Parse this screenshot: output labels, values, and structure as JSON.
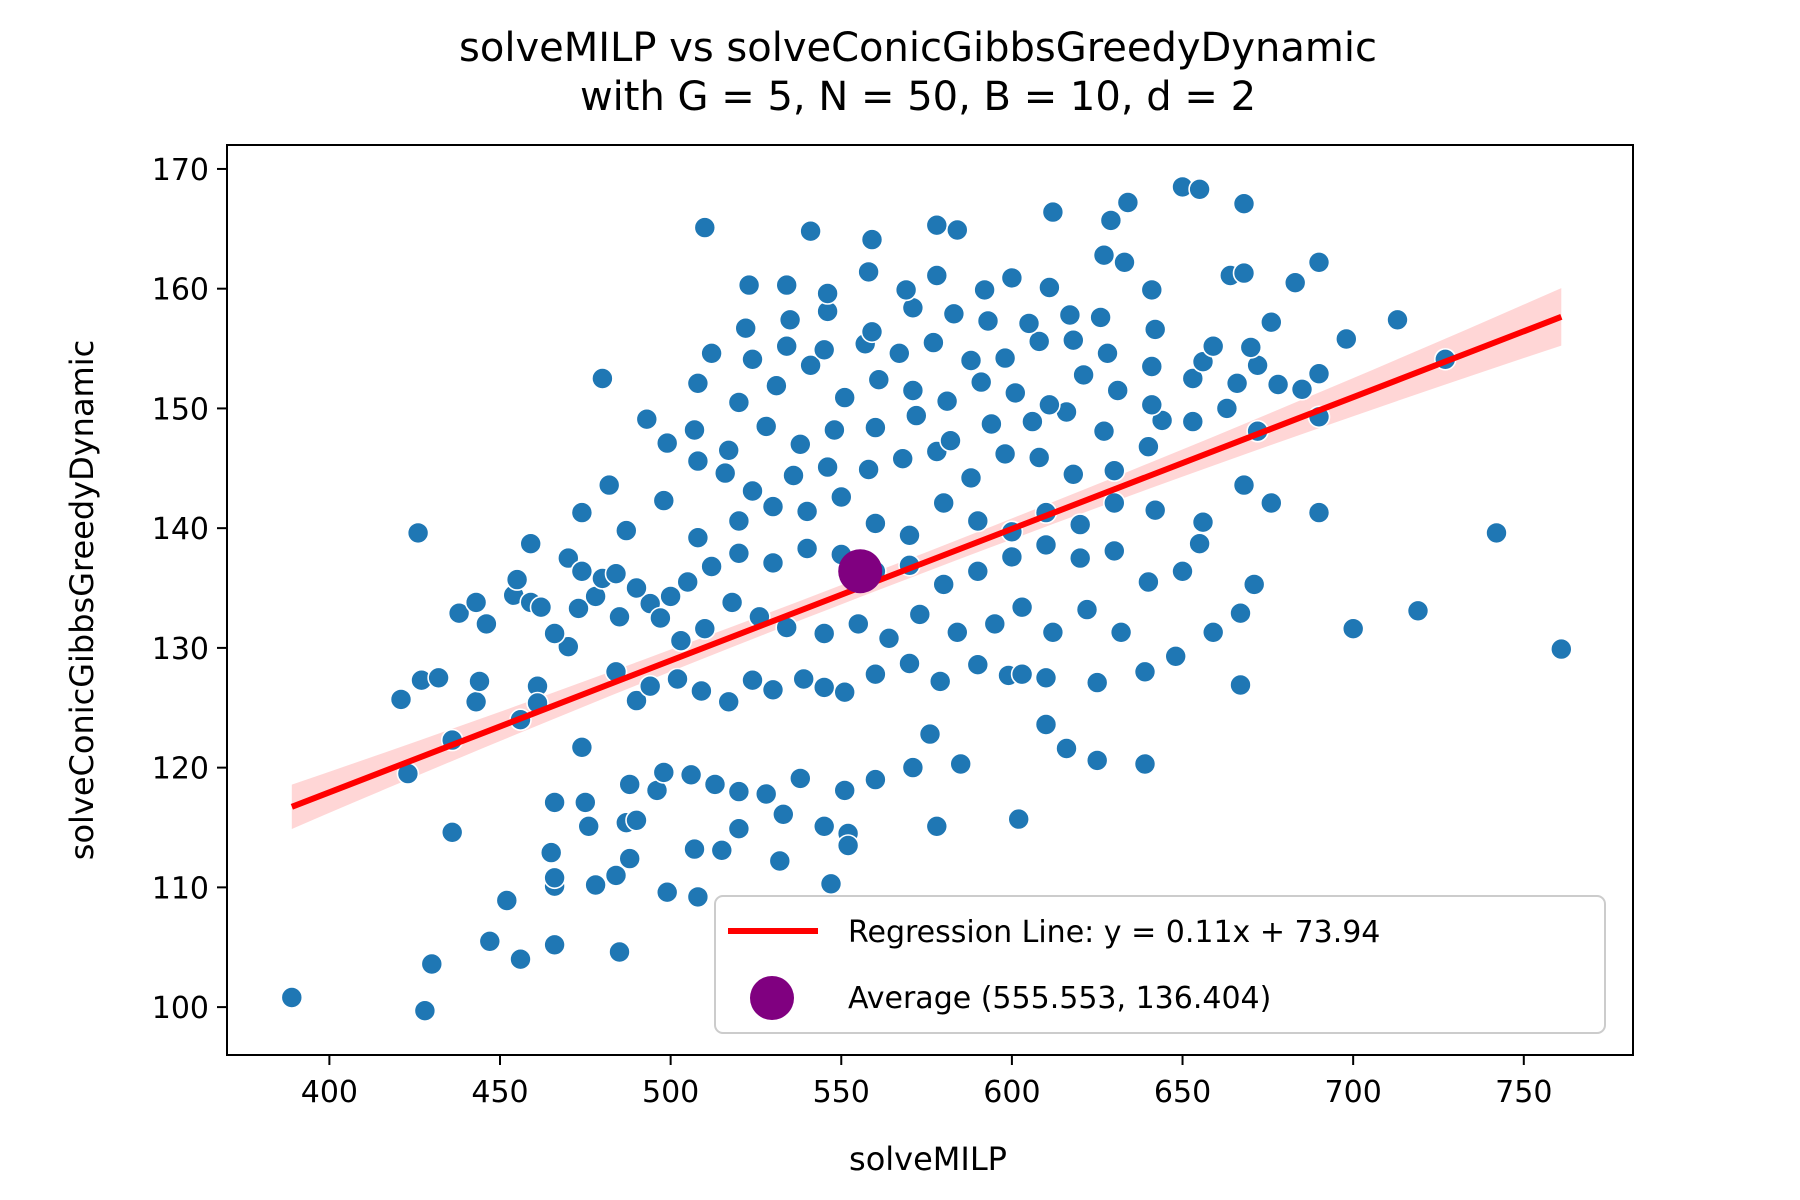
{
  "chart_data": {
    "type": "scatter",
    "title_line1": "solveMILP vs solveConicGibbsGreedyDynamic",
    "title_line2": "with G = 5, N = 50, B = 10, d = 2",
    "xlabel": "solveMILP",
    "ylabel": "solveConicGibbsGreedyDynamic",
    "xlim": [
      370,
      782
    ],
    "ylim": [
      96,
      172
    ],
    "xticks": [
      400,
      450,
      500,
      550,
      600,
      650,
      700,
      750
    ],
    "yticks": [
      100,
      110,
      120,
      130,
      140,
      150,
      160,
      170
    ],
    "grid": false,
    "legend_position": "lower-right",
    "colors": {
      "points": "#1f77b4",
      "regression": "#ff0000",
      "confidence_band": "#ffcccc",
      "average": "#800080"
    },
    "regression": {
      "slope": 0.11,
      "intercept": 73.94,
      "x_range": [
        389,
        761
      ],
      "ci_halfwidth_end": 2.4,
      "ci_halfwidth_center": 0.8,
      "label": "Regression Line: y = 0.11x + 73.94"
    },
    "average": {
      "x": 555.553,
      "y": 136.404,
      "label": "Average (555.553, 136.404)"
    },
    "series": [
      {
        "points": [
          [
            389,
            100.8
          ],
          [
            428,
            99.7
          ],
          [
            430,
            103.6
          ],
          [
            447,
            105.5
          ],
          [
            456,
            104.0
          ],
          [
            466,
            105.2
          ],
          [
            485,
            104.6
          ],
          [
            452,
            108.9
          ],
          [
            466,
            110.1
          ],
          [
            466,
            110.8
          ],
          [
            478,
            110.2
          ],
          [
            484,
            111.0
          ],
          [
            488,
            112.4
          ],
          [
            499,
            109.6
          ],
          [
            508,
            109.2
          ],
          [
            547,
            110.3
          ],
          [
            532,
            112.2
          ],
          [
            436,
            114.6
          ],
          [
            465,
            112.9
          ],
          [
            476,
            115.1
          ],
          [
            466,
            117.1
          ],
          [
            487,
            115.4
          ],
          [
            490,
            115.6
          ],
          [
            507,
            113.2
          ],
          [
            515,
            113.1
          ],
          [
            520,
            114.9
          ],
          [
            533,
            116.1
          ],
          [
            545,
            115.1
          ],
          [
            552,
            114.5
          ],
          [
            552,
            113.5
          ],
          [
            578,
            115.1
          ],
          [
            602,
            115.7
          ],
          [
            423,
            119.5
          ],
          [
            436,
            122.3
          ],
          [
            474,
            121.7
          ],
          [
            475,
            117.1
          ],
          [
            488,
            118.6
          ],
          [
            496,
            118.1
          ],
          [
            498,
            119.6
          ],
          [
            506,
            119.4
          ],
          [
            513,
            118.6
          ],
          [
            520,
            118.0
          ],
          [
            528,
            117.8
          ],
          [
            538,
            119.1
          ],
          [
            551,
            118.1
          ],
          [
            560,
            119.0
          ],
          [
            571,
            120.0
          ],
          [
            576,
            122.8
          ],
          [
            585,
            120.3
          ],
          [
            610,
            123.6
          ],
          [
            625,
            120.6
          ],
          [
            639,
            120.3
          ],
          [
            616,
            121.6
          ],
          [
            421,
            125.7
          ],
          [
            427,
            127.3
          ],
          [
            432,
            127.5
          ],
          [
            443,
            125.5
          ],
          [
            444,
            127.2
          ],
          [
            456,
            124.0
          ],
          [
            461,
            126.8
          ],
          [
            461,
            125.4
          ],
          [
            470,
            130.1
          ],
          [
            484,
            128.0
          ],
          [
            490,
            125.6
          ],
          [
            494,
            126.8
          ],
          [
            502,
            127.4
          ],
          [
            509,
            126.4
          ],
          [
            517,
            125.5
          ],
          [
            524,
            127.3
          ],
          [
            530,
            126.5
          ],
          [
            539,
            127.4
          ],
          [
            545,
            126.7
          ],
          [
            551,
            126.3
          ],
          [
            560,
            127.8
          ],
          [
            570,
            128.7
          ],
          [
            579,
            127.2
          ],
          [
            590,
            128.6
          ],
          [
            599,
            127.7
          ],
          [
            603,
            127.8
          ],
          [
            610,
            127.5
          ],
          [
            625,
            127.1
          ],
          [
            639,
            128.0
          ],
          [
            667,
            126.9
          ],
          [
            438,
            132.9
          ],
          [
            443,
            133.8
          ],
          [
            446,
            132.0
          ],
          [
            454,
            134.4
          ],
          [
            459,
            133.8
          ],
          [
            462,
            133.4
          ],
          [
            466,
            131.2
          ],
          [
            473,
            133.3
          ],
          [
            478,
            134.3
          ],
          [
            485,
            132.6
          ],
          [
            494,
            133.7
          ],
          [
            497,
            132.5
          ],
          [
            503,
            130.6
          ],
          [
            510,
            131.6
          ],
          [
            518,
            133.8
          ],
          [
            526,
            132.6
          ],
          [
            534,
            131.7
          ],
          [
            545,
            131.2
          ],
          [
            555,
            132.0
          ],
          [
            564,
            130.8
          ],
          [
            573,
            132.8
          ],
          [
            584,
            131.3
          ],
          [
            595,
            132.0
          ],
          [
            603,
            133.4
          ],
          [
            612,
            131.3
          ],
          [
            622,
            133.2
          ],
          [
            632,
            131.3
          ],
          [
            648,
            129.3
          ],
          [
            659,
            131.3
          ],
          [
            667,
            132.9
          ],
          [
            700,
            131.6
          ],
          [
            719,
            133.1
          ],
          [
            761,
            129.9
          ],
          [
            455,
            135.7
          ],
          [
            459,
            138.7
          ],
          [
            470,
            137.5
          ],
          [
            474,
            136.4
          ],
          [
            480,
            135.8
          ],
          [
            484,
            136.2
          ],
          [
            490,
            135.0
          ],
          [
            500,
            134.3
          ],
          [
            505,
            135.5
          ],
          [
            512,
            136.8
          ],
          [
            520,
            137.9
          ],
          [
            530,
            137.1
          ],
          [
            540,
            138.3
          ],
          [
            550,
            137.8
          ],
          [
            560,
            136.4
          ],
          [
            570,
            136.9
          ],
          [
            580,
            135.3
          ],
          [
            590,
            136.4
          ],
          [
            600,
            137.6
          ],
          [
            610,
            138.6
          ],
          [
            620,
            137.5
          ],
          [
            630,
            138.1
          ],
          [
            640,
            135.5
          ],
          [
            650,
            136.4
          ],
          [
            655,
            138.7
          ],
          [
            671,
            135.3
          ],
          [
            426,
            139.6
          ],
          [
            474,
            141.3
          ],
          [
            487,
            139.8
          ],
          [
            508,
            139.2
          ],
          [
            520,
            140.6
          ],
          [
            530,
            141.8
          ],
          [
            540,
            141.4
          ],
          [
            550,
            142.6
          ],
          [
            560,
            140.4
          ],
          [
            570,
            139.4
          ],
          [
            580,
            142.1
          ],
          [
            590,
            140.6
          ],
          [
            600,
            139.7
          ],
          [
            610,
            141.3
          ],
          [
            620,
            140.3
          ],
          [
            630,
            142.1
          ],
          [
            642,
            141.5
          ],
          [
            656,
            140.5
          ],
          [
            668,
            143.6
          ],
          [
            676,
            142.1
          ],
          [
            690,
            141.3
          ],
          [
            742,
            139.6
          ],
          [
            482,
            143.6
          ],
          [
            498,
            142.3
          ],
          [
            508,
            145.6
          ],
          [
            516,
            144.6
          ],
          [
            524,
            143.1
          ],
          [
            536,
            144.4
          ],
          [
            546,
            145.1
          ],
          [
            558,
            144.9
          ],
          [
            568,
            145.8
          ],
          [
            578,
            146.4
          ],
          [
            588,
            144.2
          ],
          [
            598,
            146.2
          ],
          [
            608,
            145.9
          ],
          [
            618,
            144.5
          ],
          [
            630,
            144.8
          ],
          [
            640,
            146.8
          ],
          [
            507,
            148.2
          ],
          [
            517,
            146.5
          ],
          [
            528,
            148.5
          ],
          [
            538,
            147.0
          ],
          [
            548,
            148.2
          ],
          [
            560,
            148.4
          ],
          [
            572,
            149.4
          ],
          [
            582,
            147.3
          ],
          [
            594,
            148.7
          ],
          [
            606,
            148.9
          ],
          [
            616,
            149.7
          ],
          [
            627,
            148.1
          ],
          [
            644,
            149.0
          ],
          [
            653,
            148.9
          ],
          [
            663,
            150.0
          ],
          [
            672,
            148.1
          ],
          [
            690,
            149.3
          ],
          [
            493,
            149.1
          ],
          [
            499,
            147.1
          ],
          [
            508,
            152.1
          ],
          [
            520,
            150.5
          ],
          [
            531,
            151.9
          ],
          [
            541,
            153.6
          ],
          [
            551,
            150.9
          ],
          [
            561,
            152.4
          ],
          [
            571,
            151.5
          ],
          [
            581,
            150.6
          ],
          [
            591,
            152.2
          ],
          [
            601,
            151.3
          ],
          [
            611,
            150.3
          ],
          [
            621,
            152.8
          ],
          [
            631,
            151.5
          ],
          [
            641,
            150.3
          ],
          [
            653,
            152.5
          ],
          [
            666,
            152.1
          ],
          [
            678,
            152.0
          ],
          [
            690,
            152.9
          ],
          [
            480,
            152.5
          ],
          [
            512,
            154.6
          ],
          [
            524,
            154.1
          ],
          [
            534,
            155.2
          ],
          [
            545,
            154.9
          ],
          [
            557,
            155.4
          ],
          [
            567,
            154.6
          ],
          [
            577,
            155.5
          ],
          [
            588,
            154.0
          ],
          [
            598,
            154.2
          ],
          [
            608,
            155.6
          ],
          [
            618,
            155.7
          ],
          [
            628,
            154.6
          ],
          [
            641,
            153.5
          ],
          [
            656,
            153.9
          ],
          [
            672,
            153.6
          ],
          [
            685,
            151.6
          ],
          [
            698,
            155.8
          ],
          [
            727,
            154.1
          ],
          [
            522,
            156.7
          ],
          [
            535,
            157.4
          ],
          [
            546,
            158.1
          ],
          [
            559,
            156.4
          ],
          [
            571,
            158.4
          ],
          [
            583,
            157.9
          ],
          [
            593,
            157.3
          ],
          [
            605,
            157.1
          ],
          [
            617,
            157.8
          ],
          [
            626,
            157.6
          ],
          [
            642,
            156.6
          ],
          [
            659,
            155.2
          ],
          [
            670,
            155.1
          ],
          [
            676,
            157.2
          ],
          [
            713,
            157.4
          ],
          [
            523,
            160.3
          ],
          [
            534,
            160.3
          ],
          [
            546,
            159.6
          ],
          [
            558,
            161.4
          ],
          [
            569,
            159.9
          ],
          [
            578,
            161.1
          ],
          [
            592,
            159.9
          ],
          [
            600,
            160.9
          ],
          [
            611,
            160.1
          ],
          [
            627,
            162.8
          ],
          [
            641,
            159.9
          ],
          [
            664,
            161.1
          ],
          [
            668,
            161.3
          ],
          [
            683,
            160.5
          ],
          [
            690,
            162.2
          ],
          [
            510,
            165.1
          ],
          [
            541,
            164.8
          ],
          [
            559,
            164.1
          ],
          [
            578,
            165.3
          ],
          [
            584,
            164.9
          ],
          [
            612,
            166.4
          ],
          [
            629,
            165.7
          ],
          [
            634,
            167.2
          ],
          [
            650,
            168.5
          ],
          [
            655,
            168.3
          ],
          [
            668,
            167.1
          ],
          [
            633,
            162.2
          ]
        ]
      }
    ]
  }
}
